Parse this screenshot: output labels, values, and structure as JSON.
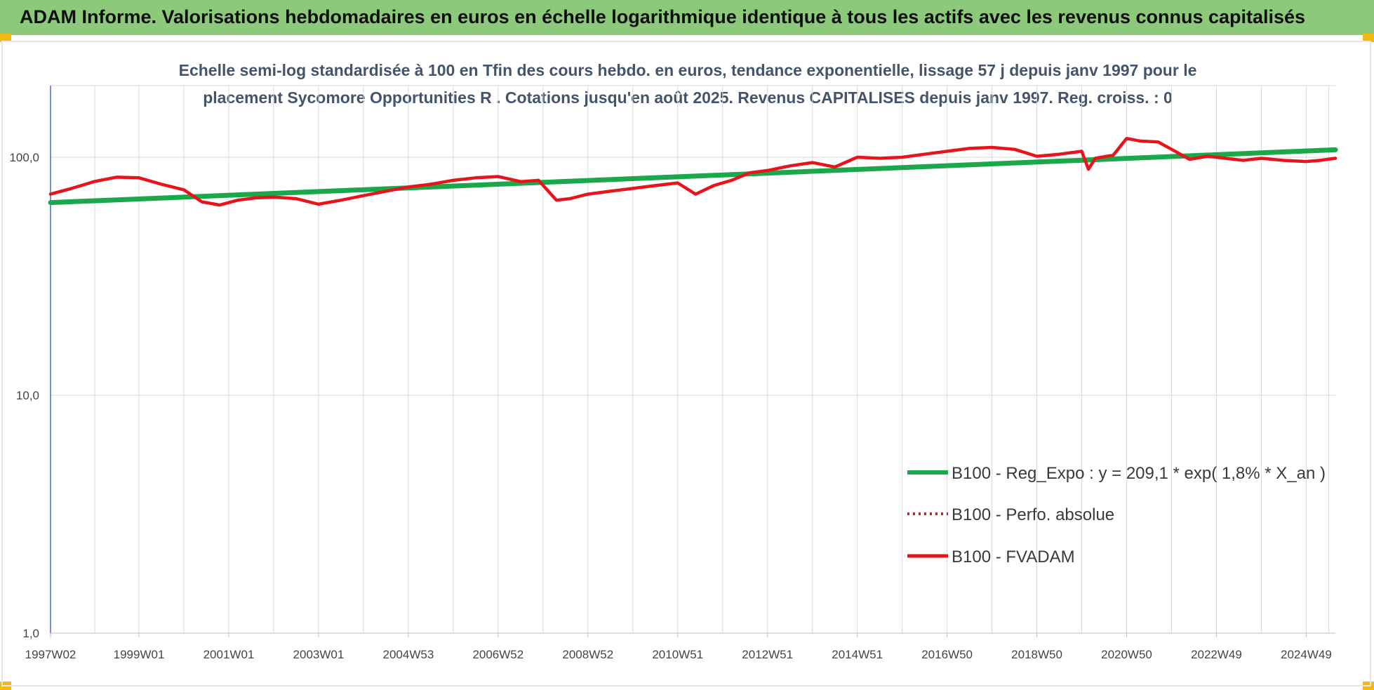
{
  "header": {
    "title": "ADAM Informe. Valorisations hebdomadaires en euros en échelle logarithmique identique à tous les actifs avec les revenus connus capitalisés"
  },
  "chart_data": {
    "type": "line",
    "title_line1": "Echelle semi-log standardisée à 100 en Tfin des cours hebdo. en euros, tendance exponentielle, lissage 57 j depuis janv 1997 pour le",
    "title_line2": "placement Sycomore Opportunities R . Cotations jusqu'en août 2025. Revenus CAPITALISES depuis janv 1997. Reg. croiss. : 0",
    "y_scale": "log",
    "ylim": [
      1,
      200
    ],
    "y_ticks": [
      {
        "value": 1,
        "label": "1,0"
      },
      {
        "value": 10,
        "label": "10,0"
      },
      {
        "value": 100,
        "label": "100,0"
      }
    ],
    "x_range": [
      1997.03,
      2025.65
    ],
    "x_ticks": [
      {
        "label": "1997W02",
        "x": 1997.03
      },
      {
        "label": "1999W01",
        "x": 1999.0
      },
      {
        "label": "2001W01",
        "x": 2001.0
      },
      {
        "label": "2003W01",
        "x": 2003.0
      },
      {
        "label": "2004W53",
        "x": 2005.0
      },
      {
        "label": "2006W52",
        "x": 2007.0
      },
      {
        "label": "2008W52",
        "x": 2009.0
      },
      {
        "label": "2010W51",
        "x": 2011.0
      },
      {
        "label": "2012W51",
        "x": 2013.0
      },
      {
        "label": "2014W51",
        "x": 2015.0
      },
      {
        "label": "2016W50",
        "x": 2017.0
      },
      {
        "label": "2018W50",
        "x": 2019.0
      },
      {
        "label": "2020W50",
        "x": 2021.0
      },
      {
        "label": "2022W49",
        "x": 2023.0
      },
      {
        "label": "2024W49",
        "x": 2025.0
      }
    ],
    "grid": {
      "vertical": true,
      "horizontal": true
    },
    "legend_position": "bottom-right",
    "series": [
      {
        "name": "B100 - Reg_Expo : y = 209,1 * exp( 1,8% *  X_an )",
        "color": "#1aa84b",
        "style": "solid",
        "x": [
          1997.03,
          2025.65
        ],
        "y": [
          64.5,
          107.5
        ]
      },
      {
        "name": "B100 - Perfo. absolue",
        "color": "#e8141b",
        "style": "dotted",
        "x": [],
        "y": []
      },
      {
        "name": "B100 - FVADAM",
        "color": "#e8141b",
        "style": "solid",
        "x": [
          1997.03,
          1997.5,
          1998.0,
          1998.5,
          1999.0,
          1999.5,
          2000.0,
          2000.4,
          2000.8,
          2001.2,
          2001.6,
          2002.0,
          2002.5,
          2003.0,
          2003.5,
          2004.0,
          2004.5,
          2005.0,
          2005.5,
          2006.0,
          2006.5,
          2007.0,
          2007.5,
          2007.9,
          2008.3,
          2008.6,
          2009.0,
          2009.5,
          2010.0,
          2010.5,
          2011.0,
          2011.4,
          2011.8,
          2012.2,
          2012.6,
          2013.0,
          2013.5,
          2014.0,
          2014.5,
          2015.0,
          2015.5,
          2016.0,
          2016.5,
          2017.0,
          2017.5,
          2018.0,
          2018.5,
          2019.0,
          2019.5,
          2020.0,
          2020.15,
          2020.3,
          2020.7,
          2021.0,
          2021.3,
          2021.7,
          2022.0,
          2022.4,
          2022.8,
          2023.2,
          2023.6,
          2024.0,
          2024.5,
          2025.0,
          2025.3,
          2025.65
        ],
        "y": [
          70.0,
          74.0,
          79.0,
          82.5,
          82.0,
          77.0,
          73.0,
          65.0,
          63.0,
          66.0,
          67.5,
          68.0,
          67.0,
          63.5,
          66.0,
          69.0,
          72.0,
          75.0,
          77.0,
          80.0,
          82.0,
          83.0,
          79.0,
          80.0,
          66.0,
          67.0,
          70.0,
          72.0,
          74.0,
          76.0,
          78.0,
          70.0,
          76.0,
          80.0,
          86.0,
          88.0,
          92.0,
          95.0,
          91.0,
          100.0,
          99.0,
          100.0,
          103.0,
          106.0,
          109.0,
          110.0,
          108.0,
          101.0,
          103.0,
          106.0,
          89.0,
          99.0,
          102.0,
          120.0,
          117.0,
          116.0,
          108.0,
          98.0,
          101.0,
          99.0,
          97.0,
          99.0,
          97.0,
          96.0,
          97.0,
          99.0
        ]
      }
    ]
  }
}
